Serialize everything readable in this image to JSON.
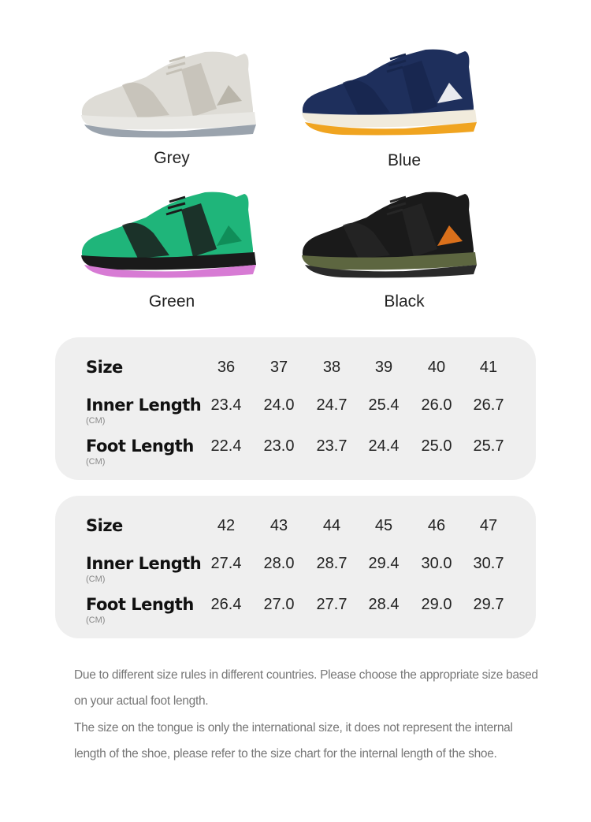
{
  "variants": [
    {
      "label": "Grey",
      "colors": {
        "upper": "#dedcd6",
        "overlay": "#c4c0b6",
        "midsole": "#e9e8e4",
        "outsole": "#9aa3ad",
        "accent": "#b5b0a5"
      }
    },
    {
      "label": "Blue",
      "colors": {
        "upper": "#1e2f5c",
        "overlay": "#17264d",
        "midsole": "#f1ebdc",
        "outsole": "#f0a420",
        "accent": "#ffffff"
      }
    },
    {
      "label": "Green",
      "colors": {
        "upper": "#1fb57a",
        "overlay": "#1b1b1b",
        "midsole": "#1a1a1a",
        "outsole": "#d77bd4",
        "accent": "#0e8a55"
      }
    },
    {
      "label": "Black",
      "colors": {
        "upper": "#1a1a1a",
        "overlay": "#262626",
        "midsole": "#5d6640",
        "outsole": "#2a2a2a",
        "accent": "#f07a1c"
      }
    }
  ],
  "size_tables": [
    {
      "rows": [
        {
          "label": "Size",
          "unit": "",
          "values": [
            "36",
            "37",
            "38",
            "39",
            "40",
            "41"
          ]
        },
        {
          "label": "Inner Length",
          "unit": "(CM)",
          "values": [
            "23.4",
            "24.0",
            "24.7",
            "25.4",
            "26.0",
            "26.7"
          ]
        },
        {
          "label": "Foot Length",
          "unit": "(CM)",
          "values": [
            "22.4",
            "23.0",
            "23.7",
            "24.4",
            "25.0",
            "25.7"
          ]
        }
      ]
    },
    {
      "rows": [
        {
          "label": "Size",
          "unit": "",
          "values": [
            "42",
            "43",
            "44",
            "45",
            "46",
            "47"
          ]
        },
        {
          "label": "Inner Length",
          "unit": "(CM)",
          "values": [
            "27.4",
            "28.0",
            "28.7",
            "29.4",
            "30.0",
            "30.7"
          ]
        },
        {
          "label": "Foot Length",
          "unit": "(CM)",
          "values": [
            "26.4",
            "27.0",
            "27.7",
            "28.4",
            "29.0",
            "29.7"
          ]
        }
      ]
    }
  ],
  "notes": [
    "Due to different size rules in different countries. Please choose the appropriate size based on your actual foot length.",
    "The size on the tongue is only the international size, it does not represent the internal length of the shoe, please refer to the size chart for the internal length of the shoe."
  ]
}
